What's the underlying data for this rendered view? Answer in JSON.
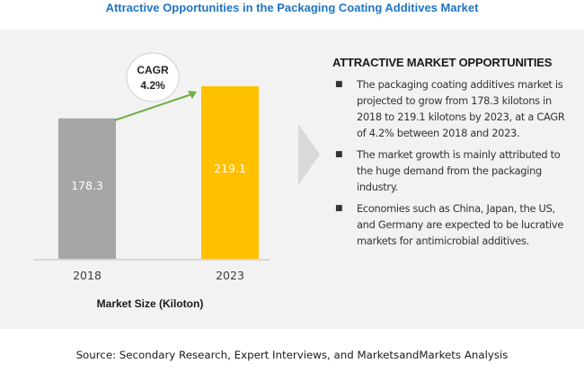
{
  "title": "Attractive Opportunities in the Packaging Coating Additives Market",
  "colors": {
    "title": "#1f75c4",
    "bar_2018": "#a6a6a6",
    "bar_2023": "#ffc000",
    "panel": "#f2f2f2",
    "arrow": "#70ad47",
    "chevron": "#d9d9d9"
  },
  "chart_data": {
    "type": "bar",
    "categories": [
      "2018",
      "2023"
    ],
    "values": [
      178.3,
      219.1
    ],
    "value_labels": [
      "178.3",
      "219.1"
    ],
    "xlabel": "Market Size (Kiloton)",
    "ylim": [
      0,
      219.1
    ],
    "cagr_label": "CAGR",
    "cagr_value": "4.2%"
  },
  "opportunities": {
    "heading": "ATTRACTIVE MARKET OPPORTUNITIES",
    "bullet_icon": "square-bullet-icon",
    "items": [
      "The packaging coating additives market is projected to grow from 178.3 kilotons in 2018 to 219.1 kilotons by 2023, at a CAGR of 4.2% between 2018 and 2023.",
      "The market growth is mainly attributed to the huge demand from the packaging industry.",
      "Economies such as China, Japan, the US, and Germany are expected to be lucrative markets for antimicrobial additives."
    ]
  },
  "source": "Source: Secondary Research, Expert Interviews, and MarketsandMarkets Analysis"
}
